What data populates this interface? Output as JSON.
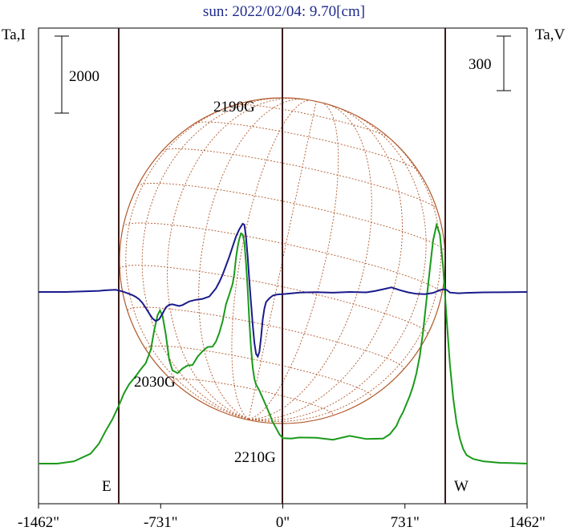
{
  "title": "sun: 2022/02/04: 9.70[cm]",
  "left_axis_label": "Ta,I",
  "right_axis_label": "Ta,V",
  "scale_left": "2000",
  "scale_right": "300",
  "east_label": "E",
  "west_label": "W",
  "chart_data": {
    "type": "line",
    "title": "sun: 2022/02/04: 9.70[cm]",
    "x_ticks": [
      "-1462\"",
      "-731\"",
      "0\"",
      "731\"",
      "1462\""
    ],
    "xlim": [
      -1462,
      1462
    ],
    "x_units": "arcsec",
    "annotations": [
      "2190G",
      "2030G",
      "2210G"
    ],
    "series": [
      {
        "name": "Ta,I",
        "color": "#1a9a1a",
        "x": [
          -1462,
          -1350,
          -1250,
          -1150,
          -1100,
          -1060,
          -1020,
          -980,
          -950,
          -920,
          -880,
          -850,
          -820,
          -790,
          -770,
          -750,
          -735,
          -720,
          -700,
          -680,
          -660,
          -630,
          -600,
          -570,
          -540,
          -510,
          -480,
          -450,
          -420,
          -400,
          -380,
          -360,
          -340,
          -320,
          -300,
          -290,
          -280,
          -270,
          -260,
          -250,
          -240,
          -230,
          -220,
          -210,
          -200,
          -190,
          -180,
          -170,
          -160,
          -140,
          -120,
          -100,
          -80,
          -60,
          -40,
          -20,
          0,
          50,
          100,
          200,
          300,
          400,
          500,
          600,
          640,
          680,
          700,
          720,
          740,
          760,
          780,
          800,
          820,
          840,
          860,
          880,
          900,
          920,
          940,
          960,
          980,
          1000,
          1020,
          1040,
          1060,
          1080,
          1100,
          1140,
          1200,
          1300,
          1400,
          1462
        ],
        "y": [
          0,
          0,
          60,
          260,
          520,
          850,
          1150,
          1520,
          1830,
          2060,
          2270,
          2450,
          2610,
          2960,
          3450,
          3850,
          3980,
          3850,
          3350,
          2700,
          2420,
          2350,
          2470,
          2550,
          2560,
          2780,
          2920,
          3030,
          3040,
          3170,
          3400,
          3700,
          4140,
          4400,
          4670,
          4940,
          5350,
          5640,
          5840,
          5980,
          5950,
          5750,
          5200,
          4500,
          3700,
          3000,
          2500,
          2200,
          2050,
          1900,
          1700,
          1500,
          1300,
          1080,
          920,
          760,
          660,
          650,
          680,
          670,
          620,
          720,
          640,
          650,
          760,
          980,
          1180,
          1340,
          1550,
          1760,
          2020,
          2350,
          2800,
          3450,
          4250,
          5050,
          5800,
          6200,
          5950,
          5100,
          3800,
          2580,
          1700,
          1060,
          640,
          380,
          220,
          120,
          60,
          20,
          10,
          0
        ]
      },
      {
        "name": "Ta,V",
        "color": "#1a1a8c",
        "x": [
          -1462,
          -1300,
          -1100,
          -1050,
          -1000,
          -960,
          -930,
          -900,
          -880,
          -860,
          -840,
          -820,
          -800,
          -780,
          -760,
          -740,
          -720,
          -700,
          -680,
          -660,
          -640,
          -620,
          -600,
          -560,
          -520,
          -480,
          -440,
          -400,
          -380,
          -360,
          -340,
          -320,
          -300,
          -280,
          -260,
          -240,
          -230,
          -220,
          -210,
          -200,
          -190,
          -180,
          -170,
          -160,
          -150,
          -140,
          -130,
          -120,
          -110,
          -100,
          -80,
          -60,
          -40,
          -20,
          0,
          50,
          100,
          200,
          300,
          400,
          500,
          550,
          600,
          650,
          700,
          750,
          800,
          850,
          900,
          920,
          940,
          960,
          980,
          1000,
          1050,
          1100,
          1200,
          1462
        ],
        "y": [
          0,
          0,
          6,
          10,
          12,
          3,
          -7,
          -17,
          -27,
          -40,
          -60,
          -88,
          -118,
          -145,
          -160,
          -150,
          -120,
          -85,
          -70,
          -68,
          -73,
          -77,
          -72,
          -52,
          -43,
          -38,
          -25,
          20,
          55,
          95,
          145,
          195,
          250,
          305,
          345,
          375,
          370,
          300,
          190,
          60,
          -60,
          -180,
          -280,
          -340,
          -355,
          -330,
          -250,
          -150,
          -90,
          -55,
          -35,
          -20,
          -15,
          -13,
          -12,
          -8,
          -3,
          -1,
          -4,
          0,
          -2,
          5,
          15,
          25,
          10,
          -2,
          -10,
          -12,
          -5,
          2,
          10,
          15,
          12,
          -3,
          -7,
          -5,
          -2,
          0
        ]
      }
    ]
  }
}
